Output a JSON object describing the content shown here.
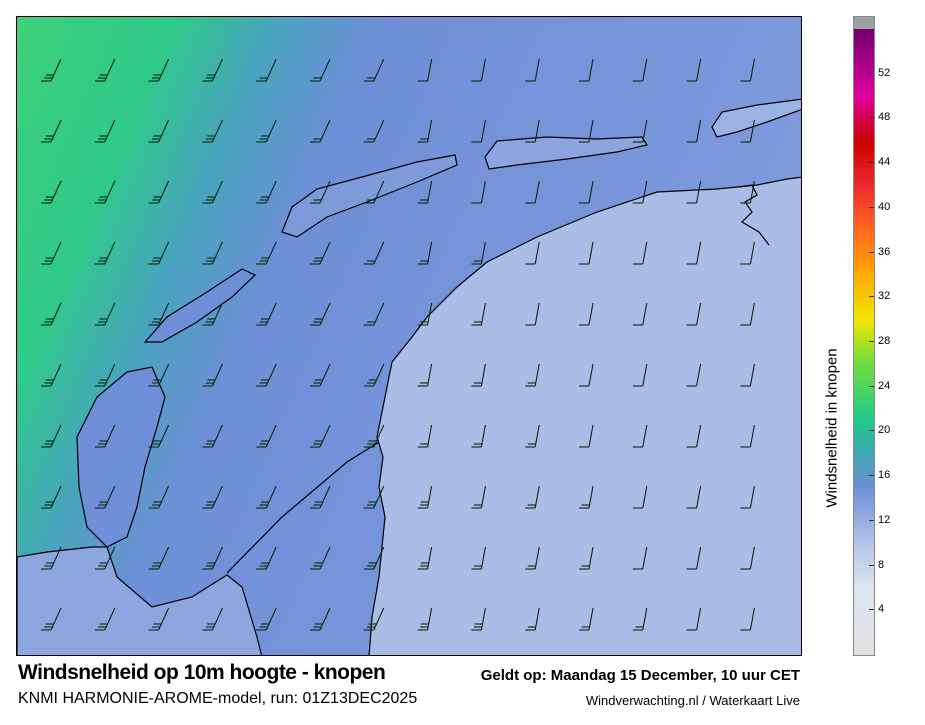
{
  "map": {
    "title": "Windsnelheid op 10m hoogte - knopen",
    "valid_time": "Geldt op: Maandag 15 December, 10 uur CET",
    "model_run": "KNMI HARMONIE-AROME-model, run: 01Z13DEC2025",
    "credit": "Windverwachting.nl / Waterkaart Live",
    "sea_color_west": "#3fd27a",
    "sea_color_east": "#6f8fd8",
    "land_color": "#a9bde6",
    "coastline_color": "#000000",
    "barb_color": "#0a2a10"
  },
  "colorbar": {
    "label": "Windsnelheid in knopen",
    "min": 0,
    "max": 56,
    "ticks": [
      "4",
      "8",
      "12",
      "16",
      "20",
      "24",
      "28",
      "32",
      "36",
      "40",
      "44",
      "48",
      "52"
    ],
    "stops": [
      {
        "v": 0,
        "c": "#e0e0e0"
      },
      {
        "v": 6,
        "c": "#dde4f0"
      },
      {
        "v": 10,
        "c": "#b4c4e6"
      },
      {
        "v": 15,
        "c": "#6f8fd8"
      },
      {
        "v": 18,
        "c": "#3aa8b0"
      },
      {
        "v": 21,
        "c": "#22c98a"
      },
      {
        "v": 26,
        "c": "#6edc40"
      },
      {
        "v": 30,
        "c": "#f0e600"
      },
      {
        "v": 34,
        "c": "#ffaa00"
      },
      {
        "v": 38,
        "c": "#ff6a20"
      },
      {
        "v": 42,
        "c": "#ee2a2a"
      },
      {
        "v": 46,
        "c": "#cc0000"
      },
      {
        "v": 50,
        "c": "#e000a0"
      },
      {
        "v": 56,
        "c": "#700070"
      }
    ],
    "overflow_color": "#a0a0a0"
  }
}
